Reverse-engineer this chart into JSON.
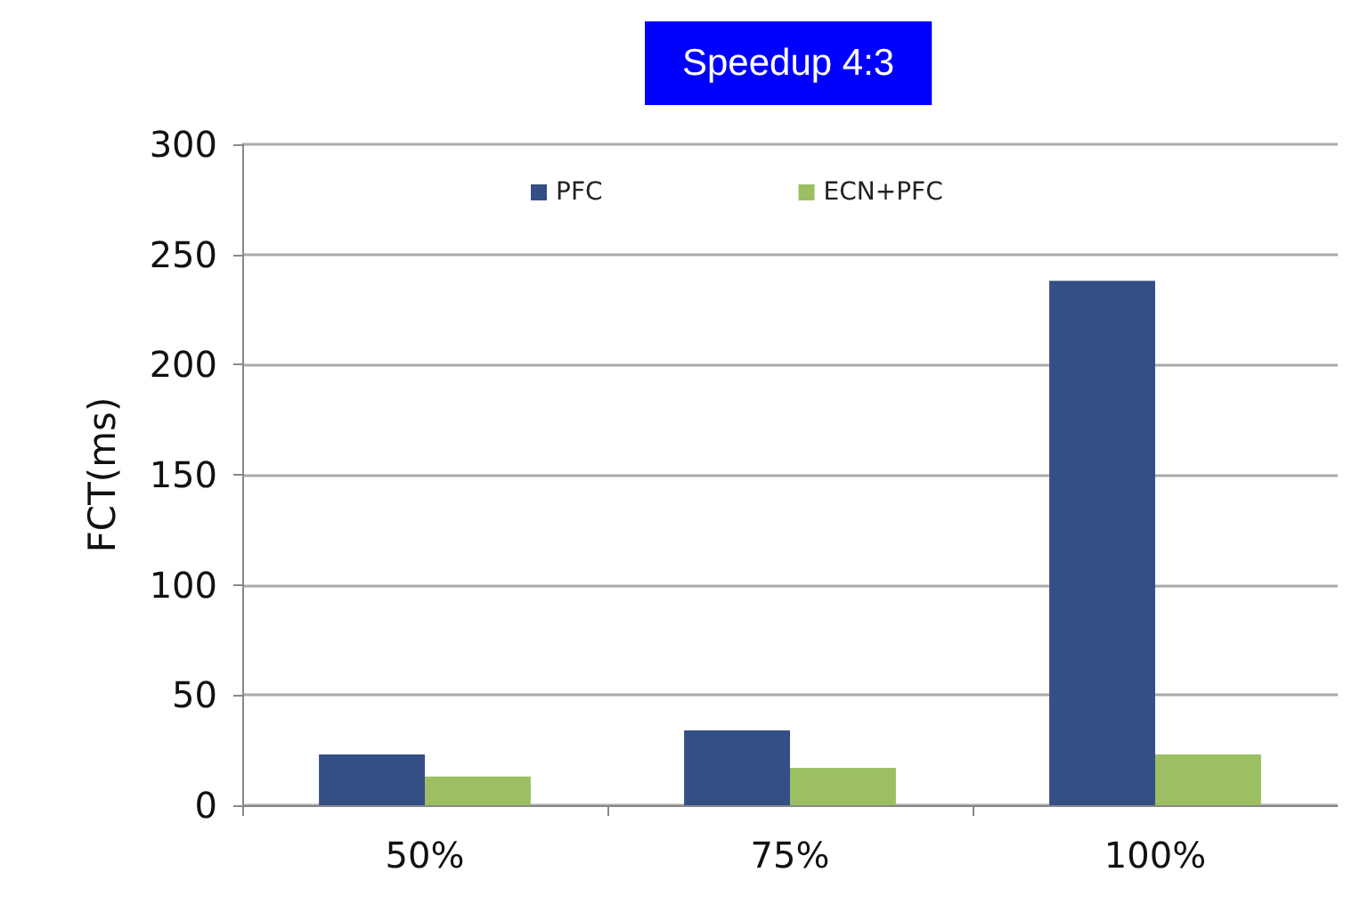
{
  "chart_data": {
    "type": "bar",
    "title": "Speedup 4:3",
    "ylabel": "FCT(ms)",
    "categories": [
      "50%",
      "75%",
      "100%"
    ],
    "series": [
      {
        "name": "PFC",
        "color": "#344e86",
        "values": [
          23,
          34,
          238
        ]
      },
      {
        "name": "ECN+PFC",
        "color": "#9bbf62",
        "values": [
          13,
          17,
          23
        ]
      }
    ],
    "ylim": [
      0,
      300
    ],
    "yticks": [
      0,
      50,
      100,
      150,
      200,
      250,
      300
    ],
    "grid": "y",
    "legend": "top"
  }
}
